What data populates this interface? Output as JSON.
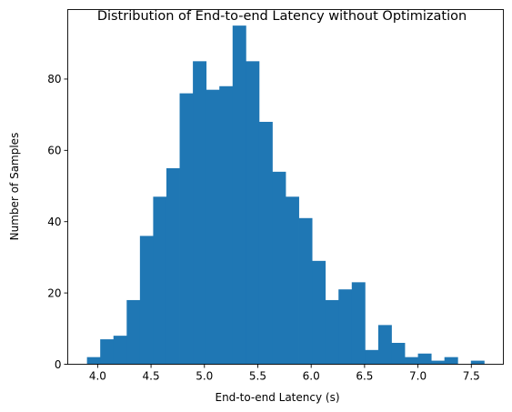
{
  "chart_data": {
    "type": "bar",
    "title": "Distribution of End-to-end Latency without Optimization",
    "xlabel": "End-to-end Latency (s)",
    "ylabel": "Number of Samples",
    "xlim": [
      3.72,
      7.8
    ],
    "ylim": [
      0,
      99.5
    ],
    "bin_start": 3.9,
    "bin_width": 0.124,
    "values": [
      2,
      7,
      8,
      18,
      36,
      47,
      55,
      76,
      85,
      77,
      78,
      95,
      85,
      68,
      54,
      47,
      41,
      29,
      18,
      21,
      23,
      4,
      11,
      6,
      2,
      3,
      1,
      2,
      0,
      1
    ],
    "xticks": [
      4.0,
      4.5,
      5.0,
      5.5,
      6.0,
      6.5,
      7.0,
      7.5
    ],
    "xtick_labels": [
      "4.0",
      "4.5",
      "5.0",
      "5.5",
      "6.0",
      "6.5",
      "7.0",
      "7.5"
    ],
    "yticks": [
      0,
      20,
      40,
      60,
      80
    ],
    "ytick_labels": [
      "0",
      "20",
      "40",
      "60",
      "80"
    ],
    "bar_color": "#1f77b4",
    "grid": false,
    "legend": "none"
  }
}
